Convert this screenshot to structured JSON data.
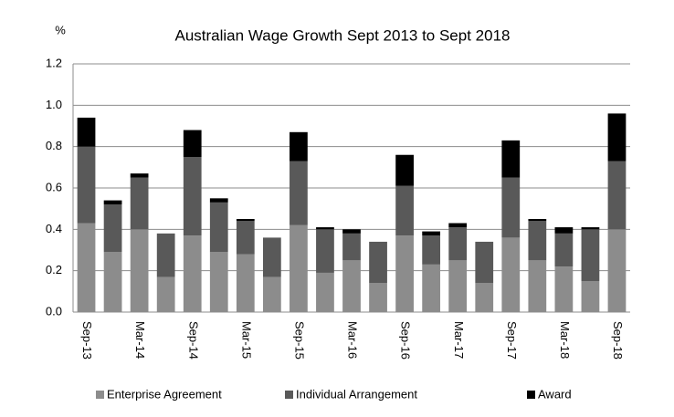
{
  "chart_data": {
    "type": "stacked_bar",
    "title": "Australian Wage Growth Sept 2013 to Sept 2018",
    "y_label": "%",
    "categories": [
      "Sep-13",
      null,
      "Mar-14",
      null,
      "Sep-14",
      null,
      "Mar-15",
      null,
      "Sep-15",
      null,
      "Mar-16",
      null,
      "Sep-16",
      null,
      "Mar-17",
      null,
      "Sep-17",
      null,
      "Mar-18",
      null,
      "Sep-18"
    ],
    "series": [
      {
        "name": "Enterprise Agreement",
        "color": "#8c8c8c",
        "values": [
          0.43,
          0.29,
          0.4,
          0.17,
          0.37,
          0.29,
          0.28,
          0.17,
          0.42,
          0.19,
          0.25,
          0.14,
          0.37,
          0.23,
          0.25,
          0.14,
          0.36,
          0.25,
          0.22,
          0.15,
          0.4
        ]
      },
      {
        "name": "Individual Arrangement",
        "color": "#595959",
        "values": [
          0.37,
          0.23,
          0.25,
          0.21,
          0.38,
          0.24,
          0.16,
          0.19,
          0.31,
          0.21,
          0.13,
          0.2,
          0.24,
          0.14,
          0.16,
          0.2,
          0.29,
          0.19,
          0.16,
          0.25,
          0.33
        ]
      },
      {
        "name": "Award",
        "color": "#000000",
        "values": [
          0.14,
          0.02,
          0.02,
          0,
          0.13,
          0.02,
          0.01,
          0,
          0.14,
          0.01,
          0.02,
          0,
          0.15,
          0.02,
          0.02,
          0,
          0.18,
          0.01,
          0.03,
          0.01,
          0.23
        ]
      }
    ],
    "ylim": [
      0,
      1.2
    ],
    "yticks": [
      {
        "value": 0,
        "label": "0.0"
      },
      0.2,
      0.4,
      0.6,
      0.8,
      {
        "value": 1,
        "label": "1.0"
      },
      1.2
    ],
    "grid": true,
    "legend": "bottom"
  }
}
